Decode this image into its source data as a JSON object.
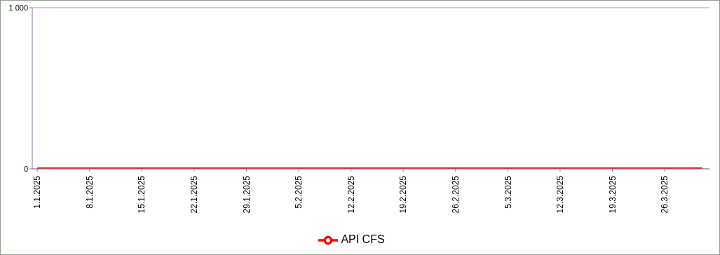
{
  "chart_data": {
    "type": "line",
    "x": [
      "2025-01-01",
      "2025-01-08",
      "2025-01-15",
      "2025-01-22",
      "2025-01-29",
      "2025-02-05",
      "2025-02-12",
      "2025-02-19",
      "2025-02-26",
      "2025-03-05",
      "2025-03-12",
      "2025-03-19",
      "2025-03-26",
      "2025-03-31"
    ],
    "series": [
      {
        "name": "API CFS",
        "color": "#ff0000",
        "values": [
          0,
          0,
          0,
          0,
          0,
          0,
          0,
          0,
          0,
          0,
          0,
          0,
          0,
          0
        ]
      }
    ],
    "xlim": [
      "2024-12-31T08:00",
      "2025-04-01T00:00"
    ],
    "xticks": [
      {
        "value": "2025-01-01",
        "label": "1.1.2025"
      },
      {
        "value": "2025-01-08",
        "label": "8.1.2025"
      },
      {
        "value": "2025-01-15",
        "label": "15.1.2025"
      },
      {
        "value": "2025-01-22",
        "label": "22.1.2025"
      },
      {
        "value": "2025-01-29",
        "label": "29.1.2025"
      },
      {
        "value": "2025-02-05",
        "label": "5.2.2025"
      },
      {
        "value": "2025-02-12",
        "label": "12.2.2025"
      },
      {
        "value": "2025-02-19",
        "label": "19.2.2025"
      },
      {
        "value": "2025-02-26",
        "label": "26.2.2025"
      },
      {
        "value": "2025-03-05",
        "label": "5.3.2025"
      },
      {
        "value": "2025-03-12",
        "label": "12.3.2025"
      },
      {
        "value": "2025-03-19",
        "label": "19.3.2025"
      },
      {
        "value": "2025-03-26",
        "label": "26.3.2025"
      }
    ],
    "ylim": [
      0,
      1000
    ],
    "yticks": [
      0,
      {
        "value": 1000,
        "label": "1 000"
      }
    ],
    "grid": "y",
    "legend": "bottom",
    "marker": "none",
    "line_style": "solid"
  }
}
